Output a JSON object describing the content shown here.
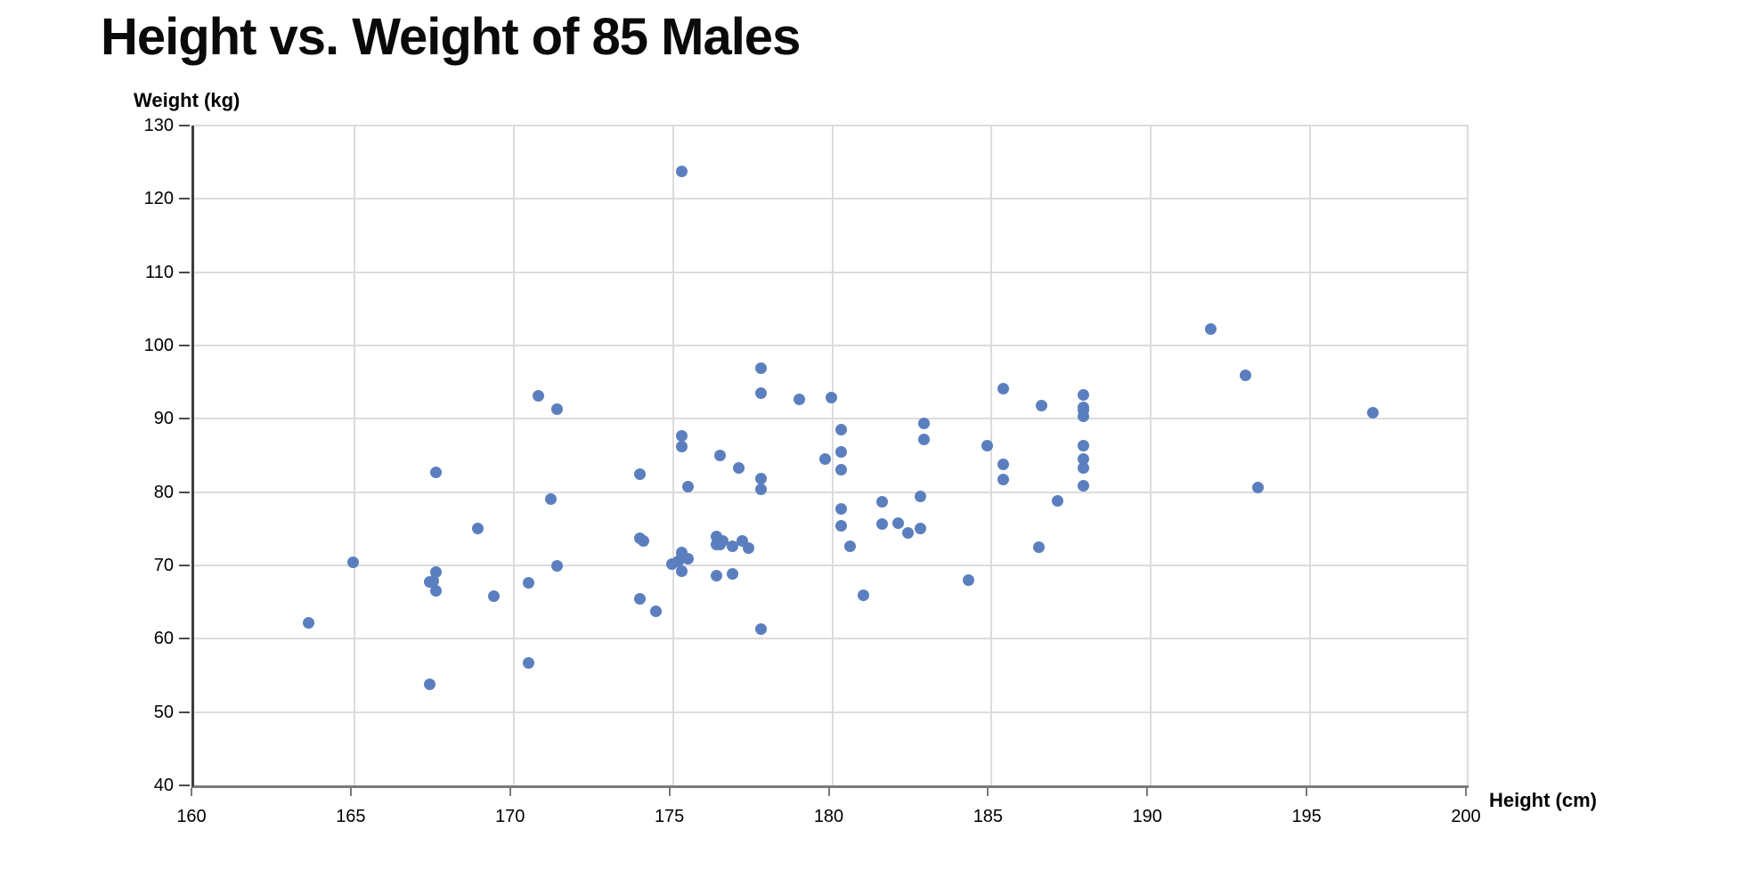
{
  "chart": {
    "title": "Height vs. Weight of 85 Males",
    "y_axis_title": "Weight (kg)",
    "x_axis_title": "Height (cm)"
  },
  "colors": {
    "point": "#5b7fbe",
    "grid": "#dcdcdc",
    "x_axis": "#7a7a7a",
    "y_axis": "#3c3c3c",
    "text": "#000000"
  },
  "chart_data": {
    "type": "scatter",
    "title": "Height vs. Weight of 85 Males",
    "xlabel": "Height (cm)",
    "ylabel": "Weight (kg)",
    "xlim": [
      160,
      200
    ],
    "ylim": [
      40,
      130
    ],
    "x_ticks": [
      160,
      165,
      170,
      175,
      180,
      185,
      190,
      195,
      200
    ],
    "y_ticks": [
      40,
      50,
      60,
      70,
      80,
      90,
      100,
      110,
      120,
      130
    ],
    "grid": true,
    "legend": false,
    "point_color": "#5b7fbe",
    "points": [
      [
        163.6,
        62.2
      ],
      [
        165.0,
        70.4
      ],
      [
        167.4,
        53.8
      ],
      [
        167.4,
        67.7
      ],
      [
        167.5,
        67.9
      ],
      [
        167.6,
        82.7
      ],
      [
        167.6,
        69.1
      ],
      [
        167.6,
        66.5
      ],
      [
        168.9,
        75.0
      ],
      [
        169.4,
        65.8
      ],
      [
        170.5,
        67.6
      ],
      [
        170.5,
        56.7
      ],
      [
        170.8,
        93.1
      ],
      [
        171.2,
        79.1
      ],
      [
        171.4,
        91.3
      ],
      [
        171.4,
        70.0
      ],
      [
        174.0,
        82.4
      ],
      [
        174.0,
        73.7
      ],
      [
        174.1,
        73.4
      ],
      [
        174.0,
        65.5
      ],
      [
        174.5,
        63.8
      ],
      [
        175.0,
        70.2
      ],
      [
        175.2,
        70.5
      ],
      [
        175.3,
        123.7
      ],
      [
        175.3,
        87.7
      ],
      [
        175.3,
        86.2
      ],
      [
        175.3,
        71.8
      ],
      [
        175.3,
        71.2
      ],
      [
        175.3,
        69.2
      ],
      [
        175.5,
        80.8
      ],
      [
        175.5,
        70.9
      ],
      [
        176.4,
        74.0
      ],
      [
        176.4,
        72.8
      ],
      [
        176.4,
        68.6
      ],
      [
        176.5,
        85.0
      ],
      [
        176.5,
        72.9
      ],
      [
        176.6,
        73.3
      ],
      [
        176.9,
        72.6
      ],
      [
        176.9,
        68.9
      ],
      [
        177.1,
        83.3
      ],
      [
        177.2,
        73.4
      ],
      [
        177.4,
        72.4
      ],
      [
        177.8,
        96.9
      ],
      [
        177.8,
        93.5
      ],
      [
        177.8,
        81.9
      ],
      [
        177.8,
        80.4
      ],
      [
        177.8,
        61.3
      ],
      [
        179.0,
        92.7
      ],
      [
        179.8,
        84.5
      ],
      [
        180.0,
        92.9
      ],
      [
        180.3,
        88.5
      ],
      [
        180.3,
        85.5
      ],
      [
        180.3,
        83.1
      ],
      [
        180.3,
        77.7
      ],
      [
        180.3,
        75.4
      ],
      [
        180.6,
        72.6
      ],
      [
        181.0,
        65.9
      ],
      [
        181.6,
        78.7
      ],
      [
        181.6,
        75.6
      ],
      [
        182.1,
        75.8
      ],
      [
        182.4,
        74.4
      ],
      [
        182.8,
        79.4
      ],
      [
        182.8,
        75.0
      ],
      [
        182.9,
        89.4
      ],
      [
        182.9,
        87.2
      ],
      [
        184.3,
        68.0
      ],
      [
        184.9,
        86.3
      ],
      [
        185.4,
        94.1
      ],
      [
        185.4,
        83.8
      ],
      [
        185.4,
        81.7
      ],
      [
        186.5,
        72.5
      ],
      [
        186.6,
        91.8
      ],
      [
        187.1,
        78.8
      ],
      [
        187.9,
        93.3
      ],
      [
        187.9,
        91.6
      ],
      [
        187.9,
        91.2
      ],
      [
        187.9,
        90.4
      ],
      [
        187.9,
        86.3
      ],
      [
        187.9,
        84.5
      ],
      [
        187.9,
        83.3
      ],
      [
        187.9,
        80.9
      ],
      [
        191.9,
        102.3
      ],
      [
        193.0,
        95.9
      ],
      [
        193.4,
        80.6
      ],
      [
        197.0,
        90.8
      ]
    ]
  }
}
